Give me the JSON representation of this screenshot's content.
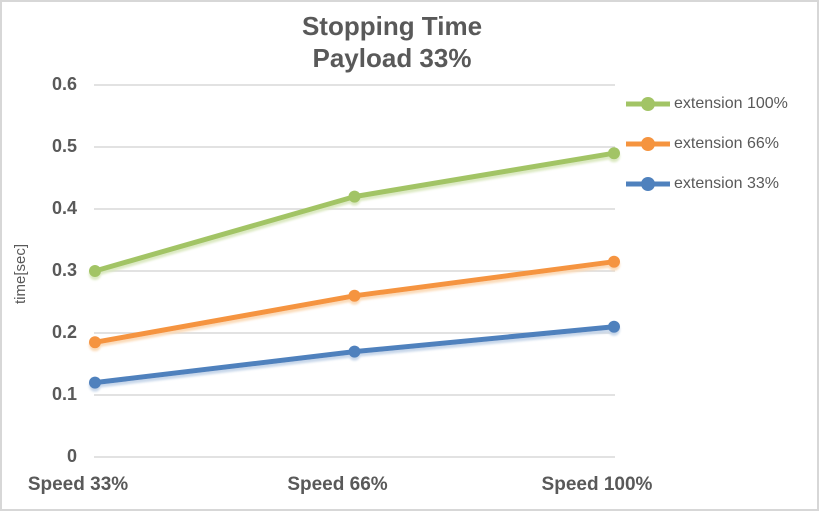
{
  "chart_data": {
    "type": "line",
    "title": "Stopping Time",
    "subtitle": "Payload 33%",
    "ylabel": "time[sec]",
    "xlabel": "",
    "categories": [
      "Speed 33%",
      "Speed 66%",
      "Speed 100%"
    ],
    "series": [
      {
        "name": "extension 100%",
        "color": "#A2C465",
        "shadow_color": "#D9E8BE",
        "values": [
          0.3,
          0.42,
          0.49
        ]
      },
      {
        "name": "extension 66%",
        "color": "#F5943F",
        "shadow_color": "#FBD9B5",
        "values": [
          0.185,
          0.26,
          0.315
        ]
      },
      {
        "name": "extension 33%",
        "color": "#4F81BD",
        "shadow_color": "#C5D5E9",
        "values": [
          0.12,
          0.17,
          0.21
        ]
      }
    ],
    "ylim": [
      0,
      0.6
    ],
    "ytick_step": 0.1,
    "y_tick_labels": [
      "0",
      "0.1",
      "0.2",
      "0.3",
      "0.4",
      "0.5",
      "0.6"
    ],
    "grid": "horizontal-only",
    "gridline_color": "#D9D9D9",
    "text_color": "#595959",
    "background_color": "#FFFFFF",
    "border_color": "#D7D7D7",
    "legend_position": "right",
    "marker": "circle"
  }
}
